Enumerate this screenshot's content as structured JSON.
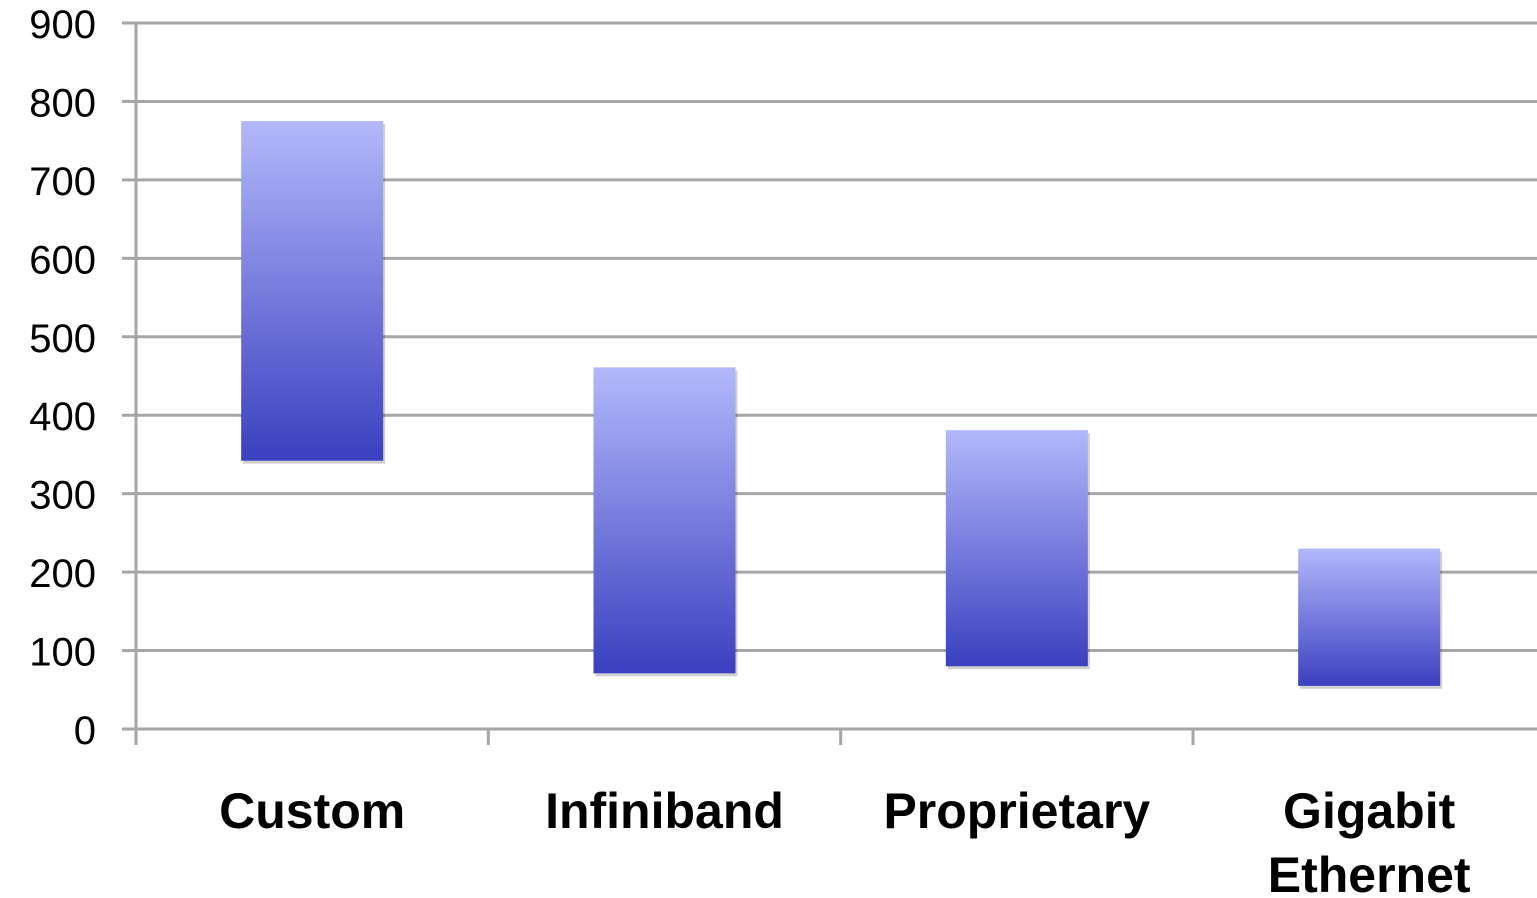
{
  "chart_data": {
    "type": "bar",
    "subtype": "floating-range",
    "title": "",
    "xlabel": "",
    "ylabel": "",
    "ylim": [
      0,
      900
    ],
    "yticks": [
      "0",
      "100",
      "200",
      "300",
      "400",
      "500",
      "600",
      "700",
      "800",
      "900"
    ],
    "grid": true,
    "legend": "none",
    "bar_color_top": "#b3b8fb",
    "bar_color_bottom": "#3a40bf",
    "grid_color": "#a6a6a6",
    "categories": [
      {
        "label_lines": [
          "Custom"
        ],
        "low": 342,
        "high": 775
      },
      {
        "label_lines": [
          "Infiniband"
        ],
        "low": 71,
        "high": 461
      },
      {
        "label_lines": [
          "Proprietary"
        ],
        "low": 80,
        "high": 381
      },
      {
        "label_lines": [
          "Gigabit",
          "Ethernet"
        ],
        "low": 55,
        "high": 230
      }
    ]
  }
}
